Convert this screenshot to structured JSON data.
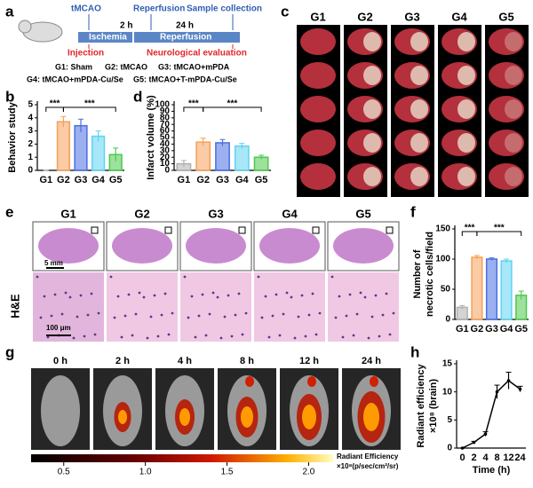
{
  "panel_labels": [
    "a",
    "b",
    "c",
    "d",
    "e",
    "f",
    "g",
    "h"
  ],
  "schematic": {
    "events_top": [
      "tMCAO",
      "2 h",
      "Reperfusion",
      "24 h",
      "Sample collection"
    ],
    "phases": [
      "Ischemia",
      "Reperfusion"
    ],
    "events_bottom": [
      "Injection",
      "Neurological evaluation"
    ],
    "groups": [
      "G1: Sham",
      "G2: tMCAO",
      "G3: tMCAO+mPDA",
      "G4: tMCAO+mPDA-Cu/Se",
      "G5: tMCAO+T-mPDA-Cu/Se"
    ]
  },
  "brain_slices": {
    "columns": [
      "G1",
      "G2",
      "G3",
      "G4",
      "G5"
    ]
  },
  "histology": {
    "columns": [
      "G1",
      "G2",
      "G3",
      "G4",
      "G5"
    ],
    "row_label": "H&E",
    "scale_top": "5 mm",
    "scale_bottom": "100 μm"
  },
  "imaging": {
    "times": [
      "0 h",
      "2 h",
      "4 h",
      "8 h",
      "12 h",
      "24 h"
    ],
    "colorbar": {
      "label": "Radiant Efficiency",
      "unit": "×10⁸(p/sec/cm²/sr)",
      "lim": [
        0.3,
        2.15
      ],
      "ticks": [
        0.5,
        {
          "value": 1,
          "label": "1.0"
        },
        1.5,
        {
          "value": 2,
          "label": "2.0"
        }
      ]
    }
  },
  "chart_data": [
    {
      "type": "bar",
      "y_label": [
        "Behavior study"
      ],
      "categories": [
        "G1",
        "G2",
        "G3",
        "G4",
        "G5"
      ],
      "values": [
        0,
        3.7,
        3.4,
        2.6,
        1.2
      ],
      "errors": [
        0,
        0.4,
        0.5,
        0.4,
        0.5
      ],
      "colors": [
        "#b0b0b0",
        "#f5a05a",
        "#4a6fe3",
        "#5fd3f0",
        "#4cc94c"
      ],
      "ylim": [
        0,
        5
      ],
      "yticks": [
        0,
        1,
        2,
        3,
        4,
        5
      ],
      "annotations": [
        "***",
        "***"
      ]
    },
    {
      "type": "bar",
      "y_label": [
        "Infarct volume (%)"
      ],
      "categories": [
        "G1",
        "G2",
        "G3",
        "G4",
        "G5"
      ],
      "values": [
        10,
        43,
        42,
        37,
        20
      ],
      "errors": [
        5,
        6,
        5,
        4,
        3
      ],
      "colors": [
        "#b0b0b0",
        "#f5a05a",
        "#4a6fe3",
        "#5fd3f0",
        "#4cc94c"
      ],
      "ylim": [
        0,
        100
      ],
      "yticks": [
        0,
        10,
        20,
        30,
        40,
        50,
        60,
        70,
        80,
        90,
        100
      ],
      "annotations": [
        "***",
        "***"
      ]
    },
    {
      "type": "bar",
      "y_label": [
        "Number of",
        "necrotic cells/field"
      ],
      "categories": [
        "G1",
        "G2",
        "G3",
        "G4",
        "G5"
      ],
      "values": [
        20,
        103,
        100,
        97,
        40
      ],
      "errors": [
        3,
        3,
        2,
        3,
        7
      ],
      "colors": [
        "#b0b0b0",
        "#f5a05a",
        "#4a6fe3",
        "#5fd3f0",
        "#4cc94c"
      ],
      "ylim": [
        0,
        150
      ],
      "yticks": [
        0,
        50,
        100,
        150
      ],
      "annotations": [
        "***",
        "***"
      ]
    },
    {
      "type": "line",
      "y_label": [
        "Radiant efficiency",
        "×10⁸ (brain)"
      ],
      "x_label": "Time (h)",
      "categories": [
        "0",
        "2",
        "4",
        "8",
        "12",
        "24"
      ],
      "values": [
        0,
        1,
        2.5,
        10,
        12,
        10.5
      ],
      "errors": [
        0,
        0.2,
        0.4,
        1.2,
        1.5,
        0.5
      ],
      "color": "#000000",
      "ylim": [
        0,
        15
      ],
      "yticks": [
        0,
        5,
        10,
        15
      ]
    }
  ]
}
